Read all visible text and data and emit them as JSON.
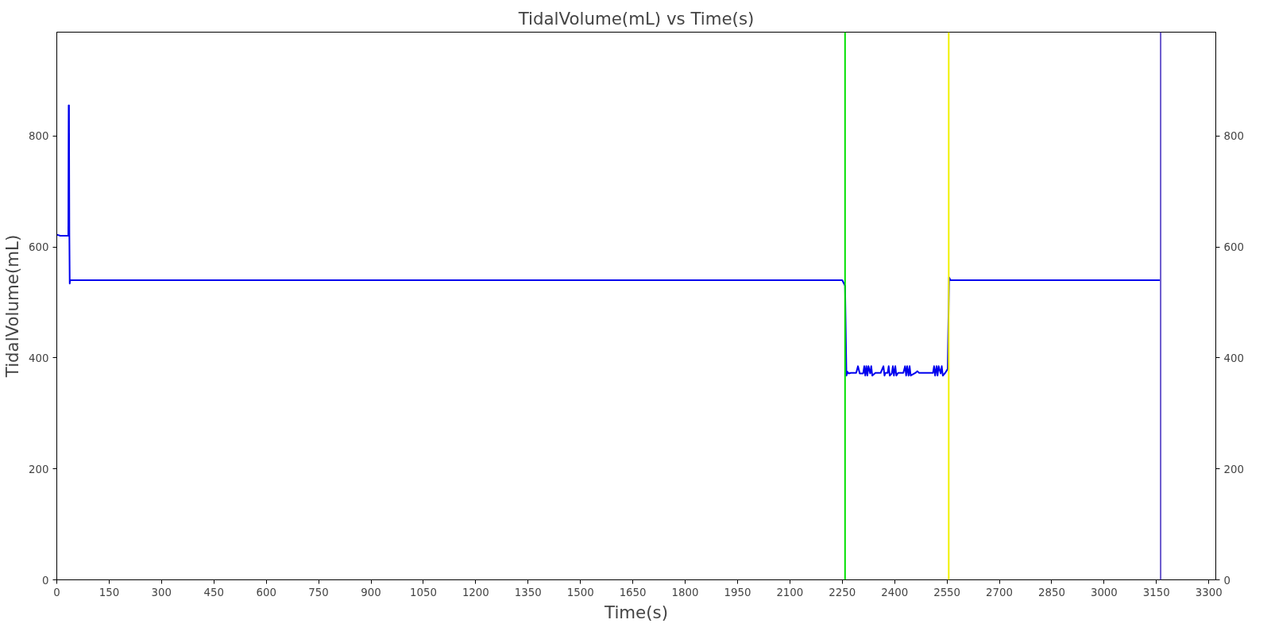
{
  "chart_data": {
    "type": "line",
    "title": "TidalVolume(mL) vs Time(s)",
    "xlabel": "Time(s)",
    "ylabel": "TidalVolume(mL)",
    "xlim": [
      0,
      3320
    ],
    "xticks": [
      0,
      150,
      300,
      450,
      600,
      750,
      900,
      1050,
      1200,
      1350,
      1500,
      1650,
      1800,
      1950,
      2100,
      2250,
      2400,
      2550,
      2700,
      2850,
      3000,
      3150,
      3300
    ],
    "ylim": [
      0,
      987
    ],
    "yticks": [
      0,
      200,
      400,
      600,
      800
    ],
    "y2lim": [
      0,
      987
    ],
    "y2ticks": [
      0,
      200,
      400,
      600,
      800
    ],
    "grid": false,
    "marker": "none",
    "line_style": "solid",
    "ref_lines": [
      {
        "axis": "x",
        "value": 2258,
        "color": "#00e000"
      },
      {
        "axis": "x",
        "value": 2555,
        "color": "#f0f000"
      },
      {
        "axis": "x",
        "value": 3162,
        "color": "#6a5acd"
      }
    ],
    "series": [
      {
        "color": "#0000ee",
        "x": [
          0,
          10,
          33,
          34,
          35,
          36,
          37,
          38,
          40,
          60,
          1000,
          2000,
          2250,
          2258,
          2262,
          2265,
          2268,
          2275,
          2290,
          2295,
          2300,
          2310,
          2313,
          2316,
          2319,
          2322,
          2325,
          2330,
          2333,
          2336,
          2345,
          2360,
          2368,
          2371,
          2374,
          2380,
          2383,
          2386,
          2392,
          2395,
          2398,
          2402,
          2405,
          2410,
          2425,
          2430,
          2433,
          2436,
          2440,
          2443,
          2446,
          2460,
          2465,
          2470,
          2500,
          2510,
          2513,
          2516,
          2520,
          2523,
          2526,
          2532,
          2535,
          2538,
          2545,
          2552,
          2556,
          2560,
          2600,
          3000,
          3162
        ],
        "values": [
          622,
          620,
          620,
          855,
          855,
          620,
          534,
          540,
          540,
          540,
          540,
          540,
          540,
          530,
          368,
          375,
          372,
          373,
          373,
          385,
          372,
          372,
          385,
          368,
          385,
          368,
          385,
          372,
          385,
          368,
          373,
          373,
          385,
          368,
          373,
          373,
          385,
          368,
          372,
          385,
          368,
          385,
          368,
          373,
          373,
          385,
          368,
          385,
          368,
          385,
          368,
          373,
          376,
          373,
          373,
          373,
          385,
          368,
          385,
          368,
          385,
          372,
          385,
          368,
          373,
          380,
          545,
          540,
          540,
          540,
          540
        ]
      }
    ]
  }
}
